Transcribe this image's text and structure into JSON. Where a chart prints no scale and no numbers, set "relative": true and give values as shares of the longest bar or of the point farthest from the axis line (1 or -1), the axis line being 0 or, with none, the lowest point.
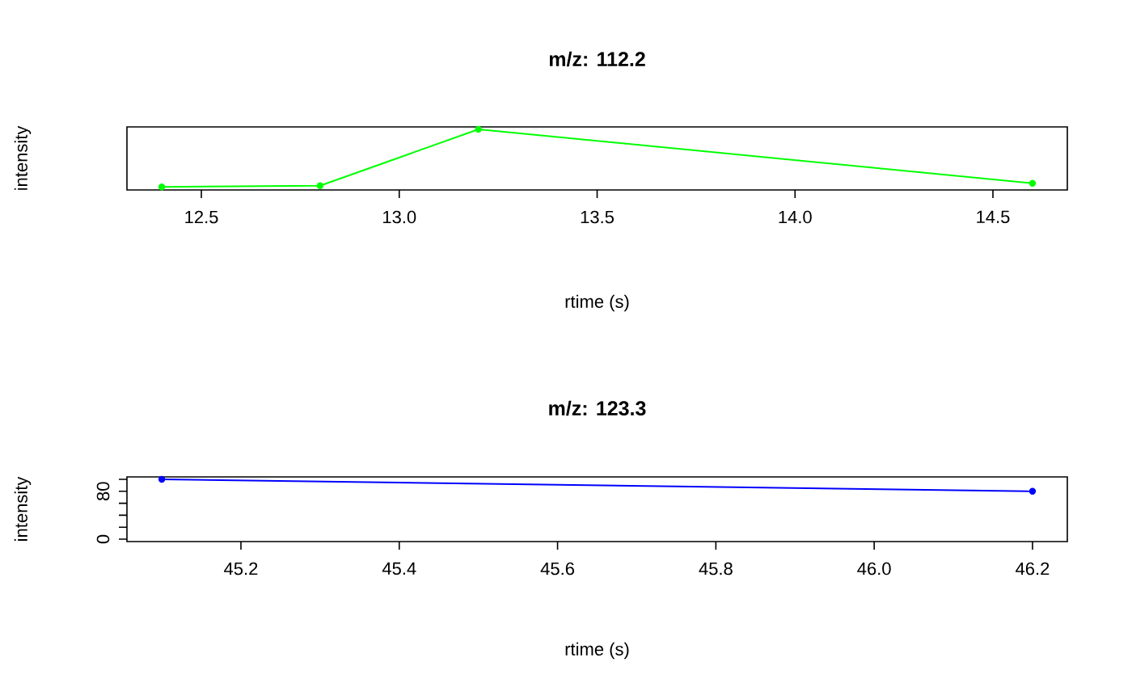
{
  "chart_data": [
    {
      "type": "line",
      "title": "m/z: 112.2",
      "xlabel": "rtime (s)",
      "ylabel": "intensity",
      "x": [
        12.4,
        12.8,
        13.2,
        14.6
      ],
      "values": [
        0.05,
        0.07,
        1,
        0.11
      ],
      "color": "#00ff00",
      "marker": "circle",
      "relative": true,
      "xlim": [
        12.312,
        14.688
      ],
      "xticks": [
        12.5,
        {
          "value": 13,
          "label": "13.0"
        },
        13.5,
        {
          "value": 14,
          "label": "14.0"
        },
        14.5
      ]
    },
    {
      "type": "line",
      "title": "m/z: 123.3",
      "xlabel": "rtime (s)",
      "ylabel": "intensity",
      "x": [
        45.1,
        46.2
      ],
      "values": [
        100,
        80
      ],
      "color": "#0000ff",
      "marker": "circle",
      "xlim": [
        45.056,
        46.244
      ],
      "ylim": [
        -4,
        104
      ],
      "xticks": [
        45.2,
        45.4,
        45.6,
        45.8,
        {
          "value": 46,
          "label": "46.0"
        },
        46.2
      ],
      "yticks": [
        0,
        {
          "value": 20,
          "label": null
        },
        {
          "value": 40,
          "label": null
        },
        {
          "value": 60,
          "label": null
        },
        80,
        {
          "value": 100,
          "label": null
        }
      ]
    }
  ]
}
